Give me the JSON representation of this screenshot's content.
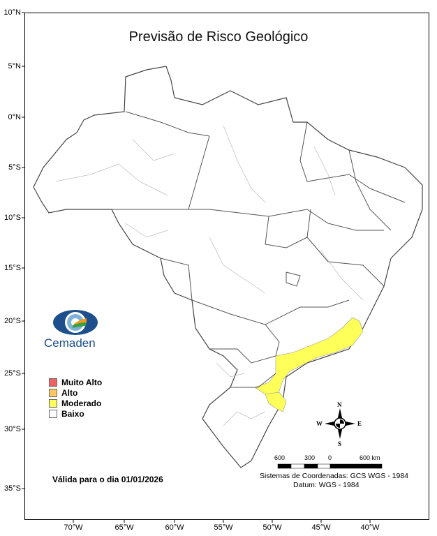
{
  "title": "Previsão de Risco Geológico",
  "lat_labels": [
    "10°N",
    "5°N",
    "0°N",
    "5°S",
    "10°S",
    "15°S",
    "20°S",
    "25°S",
    "30°S",
    "35°S"
  ],
  "lon_labels": [
    "70°W",
    "65°W",
    "60°W",
    "55°W",
    "50°W",
    "45°W",
    "40°W"
  ],
  "logo": {
    "text": "Cemaden"
  },
  "legend": [
    {
      "label": "Muito Alto",
      "color": "#f26161"
    },
    {
      "label": "Alto",
      "color": "#ffc864"
    },
    {
      "label": "Moderado",
      "color": "#ffff5a"
    },
    {
      "label": "Baixo",
      "color": "#ffffff"
    }
  ],
  "valid_text": "Válida para o dia 01/01/2026",
  "compass": {
    "n": "N",
    "s": "S",
    "e": "E",
    "w": "W"
  },
  "scale": {
    "labels": [
      "600",
      "300",
      "0",
      "600 km"
    ]
  },
  "coord_system": "Sistemas de Coordenadas: GCS WGS - 1984",
  "datum": "Datum: WGS - 1984"
}
